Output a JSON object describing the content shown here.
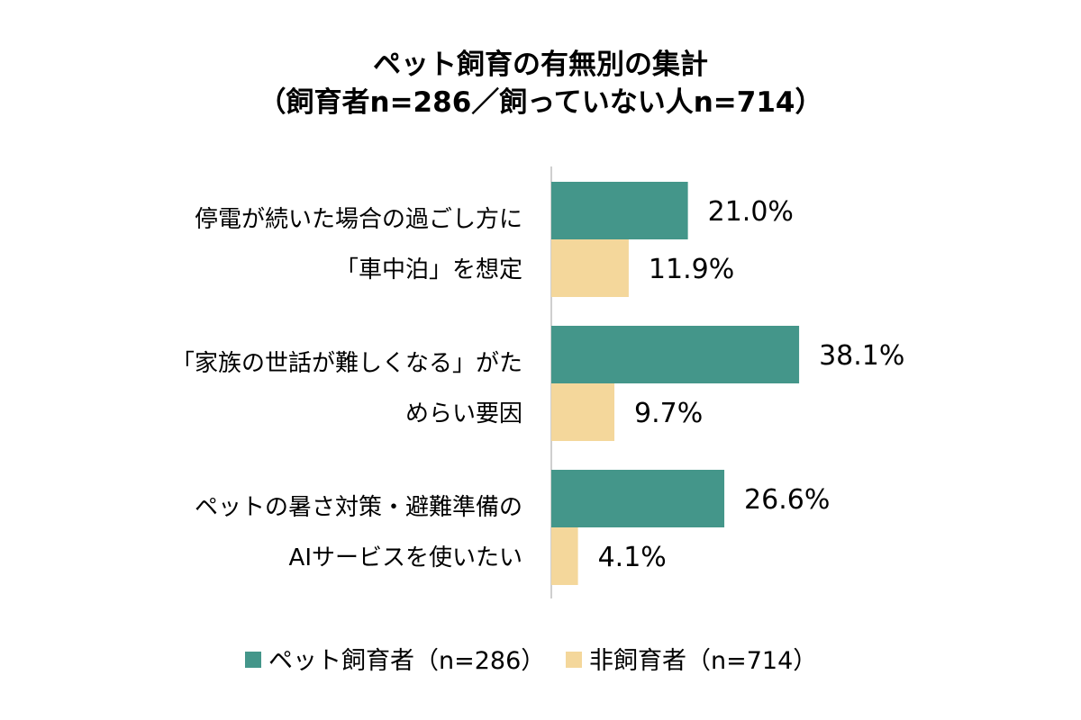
{
  "chart_data": {
    "type": "bar",
    "orientation": "horizontal",
    "title": "ペット飼育の有無別の集計",
    "subtitle": "（飼育者n=286／飼っていない人n=714）",
    "categories": [
      [
        "停電が続いた場合の過ごし方に",
        "「車中泊」を想定"
      ],
      [
        "「家族の世話が難しくなる」がた",
        "めらい要因"
      ],
      [
        "ペットの暑さ対策・避難準備の",
        "AIサービスを使いたい"
      ]
    ],
    "series": [
      {
        "name": "ペット飼育者（n=286）",
        "values": [
          21.0,
          38.1,
          26.6
        ],
        "labels": [
          "21.0%",
          "38.1%",
          "26.6%"
        ],
        "color": "#44968a"
      },
      {
        "name": "非飼育者（n=714）",
        "values": [
          11.9,
          9.7,
          4.1
        ],
        "labels": [
          "11.9%",
          "9.7%",
          "4.1%"
        ],
        "color": "#f4d79b"
      }
    ],
    "xlim": [
      0,
      50
    ],
    "legend_position": "bottom",
    "grid": false
  }
}
